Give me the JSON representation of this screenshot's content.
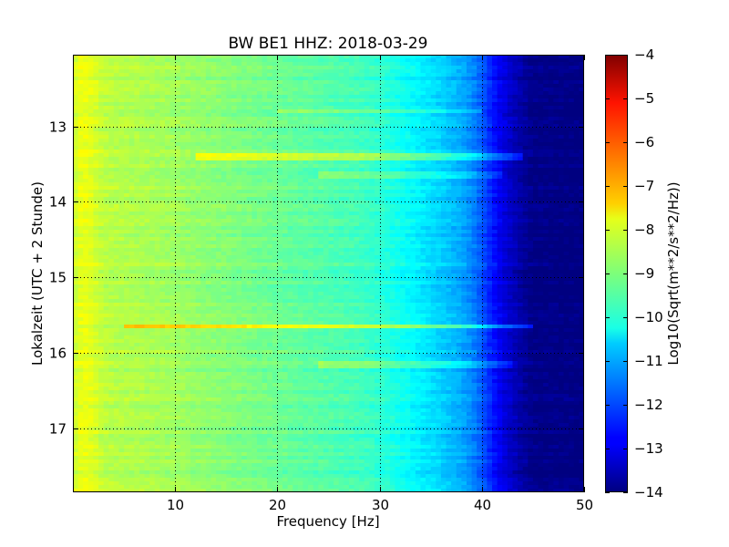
{
  "chart_data": {
    "type": "heatmap",
    "title": "BW BE1 HHZ: 2018-03-29",
    "xlabel": "Frequency [Hz]",
    "ylabel": "Lokalzeit (UTC + 2 Stunde)",
    "colorbar_label": "Log10(Sqrt(m**2/s**2/Hz))",
    "xlim": [
      0,
      50
    ],
    "ylim": [
      12.05,
      17.85
    ],
    "y_inverted": true,
    "grid": true,
    "colormap": "jet",
    "clim": [
      -14,
      -4
    ],
    "xticks": [
      {
        "value": 10,
        "label": "10"
      },
      {
        "value": 20,
        "label": "20"
      },
      {
        "value": 30,
        "label": "30"
      },
      {
        "value": 40,
        "label": "40"
      },
      {
        "value": 50,
        "label": "50"
      }
    ],
    "yticks": [
      {
        "value": 13,
        "label": "13"
      },
      {
        "value": 14,
        "label": "14"
      },
      {
        "value": 15,
        "label": "15"
      },
      {
        "value": 16,
        "label": "16"
      },
      {
        "value": 17,
        "label": "17"
      }
    ],
    "colorbar_ticks": [
      {
        "value": -4,
        "label": "−4"
      },
      {
        "value": -5,
        "label": "−5"
      },
      {
        "value": -6,
        "label": "−6"
      },
      {
        "value": -7,
        "label": "−7"
      },
      {
        "value": -8,
        "label": "−8"
      },
      {
        "value": -9,
        "label": "−9"
      },
      {
        "value": -10,
        "label": "−10"
      },
      {
        "value": -11,
        "label": "−11"
      },
      {
        "value": -12,
        "label": "−12"
      },
      {
        "value": -13,
        "label": "−13"
      },
      {
        "value": -14,
        "label": "−14"
      }
    ],
    "spectral_profile": {
      "frequency_hz": [
        0,
        1,
        2,
        3,
        5,
        8,
        12,
        18,
        24,
        28,
        30,
        32,
        34,
        36,
        38,
        39,
        40,
        41,
        42,
        43,
        44,
        45,
        50
      ],
      "value": [
        -8.3,
        -7.9,
        -8.1,
        -8.4,
        -8.5,
        -8.6,
        -8.8,
        -9.1,
        -9.4,
        -9.6,
        -9.8,
        -10.1,
        -10.4,
        -10.7,
        -11.1,
        -11.4,
        -11.9,
        -12.5,
        -13.0,
        -13.4,
        -13.7,
        -13.95,
        -14.0
      ]
    },
    "bands": [
      {
        "time": 12.8,
        "f_start": 20,
        "f_end": 40,
        "offset": 0.6
      },
      {
        "time": 13.4,
        "f_start": 12,
        "f_end": 44,
        "offset": 1.0
      },
      {
        "time": 13.65,
        "f_start": 24,
        "f_end": 42,
        "offset": 0.6
      },
      {
        "time": 15.65,
        "f_start": 5,
        "f_end": 45,
        "offset": 1.6
      },
      {
        "time": 16.15,
        "f_start": 24,
        "f_end": 43,
        "offset": 0.6
      }
    ]
  }
}
